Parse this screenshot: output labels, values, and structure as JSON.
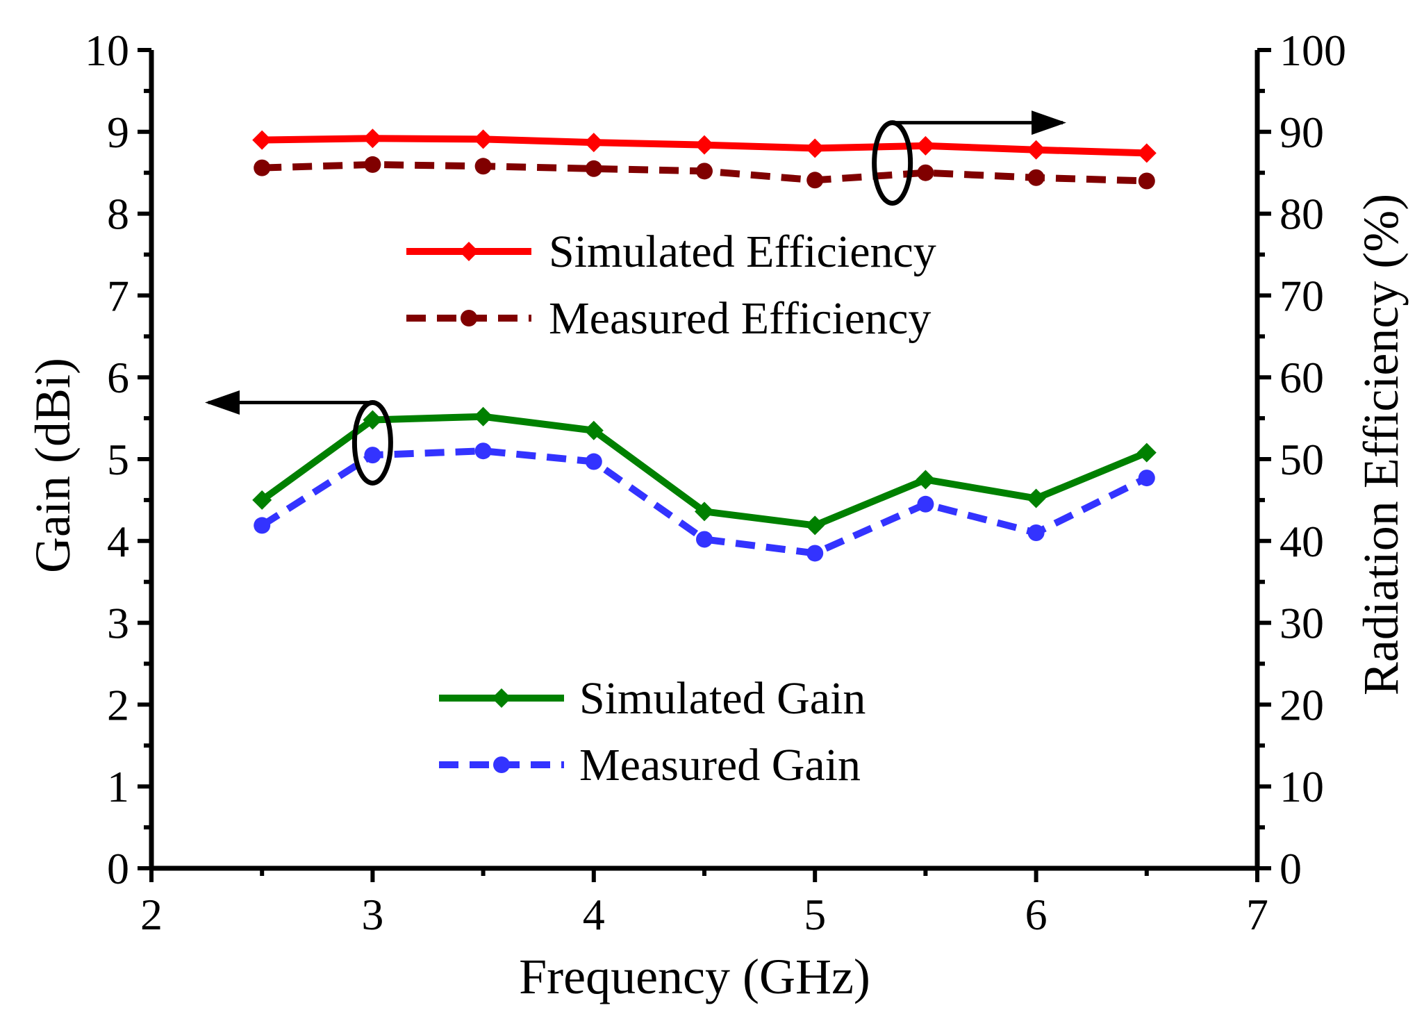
{
  "chart_data": {
    "type": "line",
    "title": "",
    "x": [
      2.5,
      3,
      3.5,
      4,
      4.5,
      5,
      5.5,
      6,
      6.5
    ],
    "xlabel": "Frequency (GHz)",
    "xlim": [
      2,
      7
    ],
    "xticks": [
      "2",
      "3",
      "4",
      "5",
      "6",
      "7"
    ],
    "ylabel_left": "Gain (dBi)",
    "ylim_left": [
      0,
      10
    ],
    "yticks_left": [
      "0",
      "1",
      "2",
      "3",
      "4",
      "5",
      "6",
      "7",
      "8",
      "9",
      "10"
    ],
    "ylabel_right": "Radiation Efficiency (%)",
    "ylim_right": [
      0,
      100
    ],
    "yticks_right": [
      "0",
      "10",
      "20",
      "30",
      "40",
      "50",
      "60",
      "70",
      "80",
      "90",
      "100"
    ],
    "grid": false,
    "series": [
      {
        "name": "Simulated Efficiency",
        "axis": "right",
        "values": [
          89,
          89.2,
          89.1,
          88.7,
          88.4,
          88,
          88.3,
          87.8,
          87.4
        ],
        "color": "#ff0000",
        "line": "solid",
        "marker": "diamond"
      },
      {
        "name": "Measured Efficiency",
        "axis": "right",
        "values": [
          85.6,
          86,
          85.8,
          85.5,
          85.2,
          84.1,
          85,
          84.4,
          84
        ],
        "color": "#800000",
        "line": "dashed",
        "marker": "circle"
      },
      {
        "name": "Simulated Gain",
        "axis": "left",
        "values": [
          4.5,
          5.48,
          5.52,
          5.35,
          4.36,
          4.19,
          4.75,
          4.52,
          5.08
        ],
        "color": "#008000",
        "line": "solid",
        "marker": "diamond"
      },
      {
        "name": "Measured Gain",
        "axis": "left",
        "values": [
          4.19,
          5.05,
          5.1,
          4.97,
          4.02,
          3.85,
          4.45,
          4.1,
          4.77
        ],
        "color": "#3333ff",
        "line": "dashed",
        "marker": "circle"
      }
    ],
    "legend_groups": [
      {
        "placement": "upper-center",
        "entries": [
          "Simulated Efficiency",
          "Measured Efficiency"
        ]
      },
      {
        "placement": "lower-center",
        "entries": [
          "Simulated Gain",
          "Measured Gain"
        ]
      }
    ],
    "annotations": [
      {
        "type": "ellipse-arrow",
        "target_series": "Simulated Gain",
        "at_x": 3,
        "direction": "left",
        "meaning": "left axis"
      },
      {
        "type": "ellipse-arrow",
        "target_series": "Measured Efficiency",
        "at_x": 5.35,
        "direction": "right",
        "meaning": "right axis"
      }
    ]
  }
}
